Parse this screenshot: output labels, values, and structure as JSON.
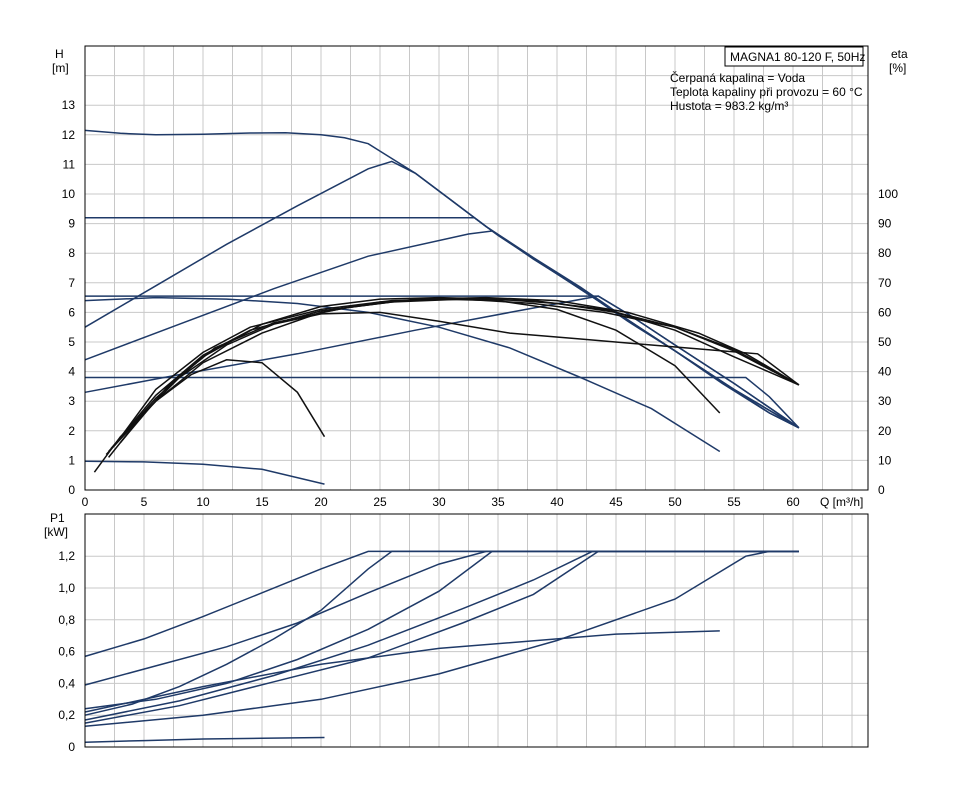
{
  "chart_data": [
    {
      "type": "line",
      "panel": "head",
      "info_box": {
        "title": "MAGNA1 80-120 F, 50Hz",
        "lines": [
          "Čerpaná kapalina = Voda",
          "Teplota kapaliny při provozu = 60 °C",
          "Hustota = 983.2 kg/m³"
        ]
      },
      "xlabel": "Q [m³/h]",
      "ylabel_left": [
        "H",
        "[m]"
      ],
      "ylabel_right": [
        "eta",
        "[%]"
      ],
      "xlim": [
        0,
        66
      ],
      "ylim": [
        0,
        15
      ],
      "y2lim": [
        0,
        150
      ],
      "x_ticks": [
        "0",
        "5",
        "10",
        "15",
        "20",
        "25",
        "30",
        "35",
        "40",
        "45",
        "50",
        "55",
        "60"
      ],
      "y_ticks": [
        "0",
        "1",
        "2",
        "3",
        "4",
        "5",
        "6",
        "7",
        "8",
        "9",
        "10",
        "11",
        "12",
        "13"
      ],
      "y2_ticks": [
        "0",
        "10",
        "20",
        "30",
        "40",
        "50",
        "60",
        "70",
        "80",
        "90",
        "100"
      ],
      "grid": true,
      "series": [
        {
          "style": "blue",
          "points": [
            [
              0,
              12.15
            ],
            [
              3,
              12.05
            ],
            [
              6,
              12.0
            ],
            [
              10,
              12.02
            ],
            [
              14,
              12.06
            ],
            [
              17,
              12.07
            ],
            [
              20,
              12.0
            ],
            [
              22,
              11.9
            ],
            [
              24,
              11.7
            ],
            [
              28,
              10.7
            ],
            [
              31,
              9.8
            ],
            [
              34,
              8.9
            ],
            [
              38,
              7.8
            ],
            [
              42,
              6.8
            ],
            [
              46,
              5.7
            ],
            [
              50,
              4.7
            ],
            [
              54,
              3.6
            ],
            [
              58,
              2.6
            ],
            [
              60.5,
              2.1
            ]
          ]
        },
        {
          "style": "blue",
          "points": [
            [
              0,
              5.5
            ],
            [
              6,
              6.9
            ],
            [
              12,
              8.3
            ],
            [
              18,
              9.6
            ],
            [
              24,
              10.85
            ],
            [
              26,
              11.1
            ],
            [
              28,
              10.7
            ],
            [
              31,
              9.8
            ],
            [
              34,
              8.9
            ],
            [
              38,
              7.85
            ],
            [
              42,
              6.85
            ],
            [
              46,
              5.75
            ],
            [
              50,
              4.7
            ],
            [
              54,
              3.65
            ],
            [
              58,
              2.6
            ],
            [
              60.5,
              2.1
            ]
          ]
        },
        {
          "style": "blue",
          "points": [
            [
              0,
              9.2
            ],
            [
              33,
              9.2
            ],
            [
              35,
              8.6
            ],
            [
              40,
              7.3
            ],
            [
              45,
              6.0
            ],
            [
              50,
              4.7
            ],
            [
              55,
              3.4
            ],
            [
              60.5,
              2.1
            ]
          ]
        },
        {
          "style": "blue",
          "points": [
            [
              0,
              4.4
            ],
            [
              8,
              5.6
            ],
            [
              16,
              6.8
            ],
            [
              24,
              7.9
            ],
            [
              32.5,
              8.65
            ],
            [
              34.5,
              8.75
            ],
            [
              40,
              7.3
            ],
            [
              45,
              6.0
            ],
            [
              50,
              4.7
            ],
            [
              55,
              3.4
            ],
            [
              60.5,
              2.1
            ]
          ]
        },
        {
          "style": "blue",
          "points": [
            [
              0,
              6.55
            ],
            [
              43.5,
              6.55
            ],
            [
              46,
              5.95
            ],
            [
              50,
              4.9
            ],
            [
              55,
              3.6
            ],
            [
              60.5,
              2.1
            ]
          ]
        },
        {
          "style": "blue",
          "points": [
            [
              0,
              3.3
            ],
            [
              8,
              3.9
            ],
            [
              18,
              4.6
            ],
            [
              28,
              5.4
            ],
            [
              36,
              6.0
            ],
            [
              43.5,
              6.55
            ],
            [
              46,
              5.95
            ],
            [
              50,
              4.9
            ],
            [
              55,
              3.6
            ],
            [
              60.5,
              2.1
            ]
          ]
        },
        {
          "style": "blue",
          "points": [
            [
              0,
              3.8
            ],
            [
              56,
              3.8
            ],
            [
              58,
              3.15
            ],
            [
              60.5,
              2.1
            ]
          ]
        },
        {
          "style": "blue",
          "points": [
            [
              0,
              6.4
            ],
            [
              6,
              6.5
            ],
            [
              12,
              6.45
            ],
            [
              18,
              6.3
            ],
            [
              24,
              6.0
            ],
            [
              30,
              5.5
            ],
            [
              36,
              4.8
            ],
            [
              42,
              3.8
            ],
            [
              48,
              2.75
            ],
            [
              53.8,
              1.3
            ]
          ]
        },
        {
          "style": "blue",
          "points": [
            [
              0,
              0.97
            ],
            [
              5,
              0.95
            ],
            [
              10,
              0.87
            ],
            [
              15,
              0.7
            ],
            [
              20.3,
              0.2
            ]
          ]
        },
        {
          "style": "black",
          "points": [
            [
              0.8,
              0.6
            ],
            [
              3,
              1.8
            ],
            [
              6,
              3.0
            ],
            [
              9,
              3.9
            ],
            [
              12,
              4.4
            ],
            [
              15,
              4.3
            ],
            [
              18,
              3.3
            ],
            [
              20.3,
              1.8
            ]
          ]
        },
        {
          "style": "black",
          "points": [
            [
              2,
              1.1
            ],
            [
              5,
              2.6
            ],
            [
              8,
              3.8
            ],
            [
              12,
              4.9
            ],
            [
              16,
              5.6
            ],
            [
              20,
              5.95
            ],
            [
              25,
              6.0
            ],
            [
              30,
              5.7
            ],
            [
              36,
              5.3
            ],
            [
              42,
              5.1
            ],
            [
              48,
              4.9
            ],
            [
              54,
              4.7
            ],
            [
              57,
              4.6
            ],
            [
              60.5,
              3.55
            ]
          ]
        },
        {
          "style": "black",
          "points": [
            [
              2,
              1.3
            ],
            [
              6,
              3.1
            ],
            [
              10,
              4.5
            ],
            [
              15,
              5.6
            ],
            [
              20,
              6.2
            ],
            [
              25,
              6.45
            ],
            [
              30,
              6.5
            ],
            [
              35,
              6.45
            ],
            [
              40,
              6.3
            ],
            [
              45,
              6.0
            ],
            [
              50,
              5.4
            ],
            [
              55,
              4.5
            ],
            [
              60.5,
              3.55
            ]
          ]
        },
        {
          "style": "black",
          "points": [
            [
              1.8,
              1.2
            ],
            [
              6,
              3.0
            ],
            [
              10,
              4.3
            ],
            [
              15,
              5.3
            ],
            [
              20,
              6.0
            ],
            [
              25,
              6.35
            ],
            [
              30,
              6.45
            ],
            [
              35,
              6.4
            ],
            [
              40,
              6.1
            ],
            [
              45,
              5.4
            ],
            [
              50,
              4.2
            ],
            [
              53.8,
              2.6
            ]
          ]
        },
        {
          "style": "black",
          "points": [
            [
              2.2,
              1.4
            ],
            [
              6,
              3.2
            ],
            [
              10,
              4.55
            ],
            [
              14,
              5.4
            ],
            [
              20,
              6.05
            ],
            [
              26,
              6.35
            ],
            [
              32,
              6.45
            ],
            [
              38,
              6.4
            ],
            [
              44,
              6.1
            ],
            [
              50,
              5.5
            ],
            [
              55,
              4.7
            ],
            [
              60.5,
              3.55
            ]
          ]
        },
        {
          "style": "black",
          "points": [
            [
              2.5,
              1.5
            ],
            [
              6,
              3.4
            ],
            [
              10,
              4.65
            ],
            [
              14,
              5.5
            ],
            [
              20,
              6.1
            ],
            [
              26,
              6.4
            ],
            [
              32,
              6.45
            ],
            [
              38,
              6.3
            ],
            [
              44,
              6.0
            ],
            [
              50,
              5.5
            ],
            [
              55,
              4.75
            ],
            [
              60.5,
              3.55
            ]
          ]
        },
        {
          "style": "black",
          "points": [
            [
              3,
              1.6
            ],
            [
              7,
              3.5
            ],
            [
              11,
              4.8
            ],
            [
              16,
              5.65
            ],
            [
              22,
              6.15
            ],
            [
              28,
              6.45
            ],
            [
              34,
              6.5
            ],
            [
              40,
              6.4
            ],
            [
              46,
              6.0
            ],
            [
              52,
              5.3
            ],
            [
              56,
              4.6
            ],
            [
              60.5,
              3.55
            ]
          ]
        }
      ]
    },
    {
      "type": "line",
      "panel": "power",
      "ylabel_left": [
        "P1",
        "[kW]"
      ],
      "xlim": [
        0,
        66
      ],
      "ylim": [
        0,
        1.3
      ],
      "y_ticks": [
        "0",
        "0,2",
        "0,4",
        "0,6",
        "0,8",
        "1,0",
        "1,2"
      ],
      "grid": true,
      "series": [
        {
          "style": "blue",
          "points": [
            [
              0,
              0.57
            ],
            [
              5,
              0.68
            ],
            [
              10,
              0.82
            ],
            [
              15,
              0.97
            ],
            [
              20,
              1.12
            ],
            [
              24,
              1.23
            ],
            [
              60.5,
              1.23
            ]
          ]
        },
        {
          "style": "blue",
          "points": [
            [
              0,
              0.2
            ],
            [
              4,
              0.27
            ],
            [
              8,
              0.38
            ],
            [
              12,
              0.52
            ],
            [
              16,
              0.68
            ],
            [
              20,
              0.86
            ],
            [
              24,
              1.12
            ],
            [
              26,
              1.23
            ],
            [
              60.5,
              1.23
            ]
          ]
        },
        {
          "style": "blue",
          "points": [
            [
              0,
              0.39
            ],
            [
              6,
              0.51
            ],
            [
              12,
              0.63
            ],
            [
              18,
              0.78
            ],
            [
              24,
              0.97
            ],
            [
              30,
              1.15
            ],
            [
              34,
              1.23
            ],
            [
              60.5,
              1.23
            ]
          ]
        },
        {
          "style": "blue",
          "points": [
            [
              0,
              0.24
            ],
            [
              6,
              0.3
            ],
            [
              12,
              0.4
            ],
            [
              18,
              0.55
            ],
            [
              24,
              0.74
            ],
            [
              30,
              0.98
            ],
            [
              34.5,
              1.23
            ],
            [
              60.5,
              1.23
            ]
          ]
        },
        {
          "style": "blue",
          "points": [
            [
              0,
              0.17
            ],
            [
              8,
              0.29
            ],
            [
              16,
              0.45
            ],
            [
              24,
              0.64
            ],
            [
              32,
              0.87
            ],
            [
              38,
              1.05
            ],
            [
              43,
              1.23
            ],
            [
              60.5,
              1.23
            ]
          ]
        },
        {
          "style": "blue",
          "points": [
            [
              0,
              0.15
            ],
            [
              8,
              0.26
            ],
            [
              16,
              0.41
            ],
            [
              24,
              0.56
            ],
            [
              32,
              0.78
            ],
            [
              38,
              0.96
            ],
            [
              43.5,
              1.23
            ],
            [
              60.5,
              1.23
            ]
          ]
        },
        {
          "style": "blue",
          "points": [
            [
              0,
              0.13
            ],
            [
              10,
              0.2
            ],
            [
              20,
              0.3
            ],
            [
              30,
              0.46
            ],
            [
              40,
              0.67
            ],
            [
              50,
              0.93
            ],
            [
              56,
              1.2
            ],
            [
              58,
              1.23
            ],
            [
              60.5,
              1.23
            ]
          ]
        },
        {
          "style": "blue",
          "points": [
            [
              0,
              0.22
            ],
            [
              10,
              0.38
            ],
            [
              20,
              0.52
            ],
            [
              30,
              0.62
            ],
            [
              40,
              0.68
            ],
            [
              45,
              0.71
            ],
            [
              53.8,
              0.73
            ]
          ]
        },
        {
          "style": "blue",
          "points": [
            [
              0,
              0.03
            ],
            [
              5,
              0.04
            ],
            [
              10,
              0.05
            ],
            [
              15,
              0.055
            ],
            [
              20.3,
              0.06
            ]
          ]
        }
      ]
    }
  ]
}
